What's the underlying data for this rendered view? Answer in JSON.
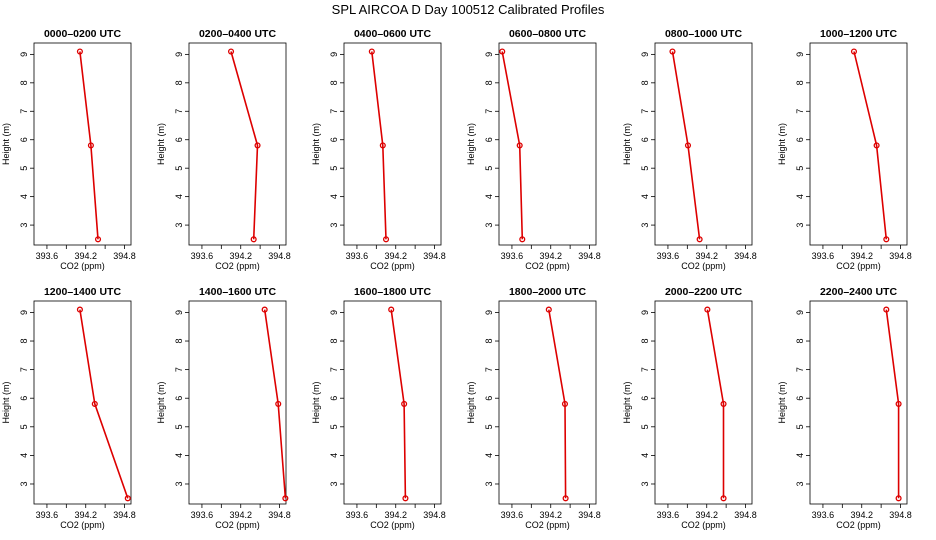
{
  "figure_title": "SPL AIRCOA D  Day 100512  Calibrated Profiles",
  "colors": {
    "series": "#dd0000",
    "axis": "#000000"
  },
  "chart_data": [
    {
      "type": "line",
      "title": "0000–0200 UTC",
      "xlabel": "CO2 (ppm)",
      "ylabel": "Height (m)",
      "xlim": [
        393.4,
        394.9
      ],
      "ylim": [
        2.3,
        9.4
      ],
      "xticks": [
        "393.6",
        "394.2",
        "394.8"
      ],
      "xtick_values": [
        393.6,
        394.2,
        394.8
      ],
      "yticks": [
        "3",
        "4",
        "5",
        "6",
        "7",
        "8",
        "9"
      ],
      "ytick_values": [
        3,
        4,
        5,
        6,
        7,
        8,
        9
      ],
      "series": [
        {
          "x": [
            394.11,
            394.28,
            394.39
          ],
          "y": [
            9.1,
            5.8,
            2.5
          ]
        }
      ]
    },
    {
      "type": "line",
      "title": "0200–0400 UTC",
      "xlabel": "CO2 (ppm)",
      "ylabel": "Height (m)",
      "xlim": [
        393.4,
        394.9
      ],
      "ylim": [
        2.3,
        9.4
      ],
      "xticks": [
        "393.6",
        "394.2",
        "394.8"
      ],
      "xtick_values": [
        393.6,
        394.2,
        394.8
      ],
      "yticks": [
        "3",
        "4",
        "5",
        "6",
        "7",
        "8",
        "9"
      ],
      "ytick_values": [
        3,
        4,
        5,
        6,
        7,
        8,
        9
      ],
      "series": [
        {
          "x": [
            394.05,
            394.46,
            394.4
          ],
          "y": [
            9.1,
            5.8,
            2.5
          ]
        }
      ]
    },
    {
      "type": "line",
      "title": "0400–0600 UTC",
      "xlabel": "CO2 (ppm)",
      "ylabel": "Height (m)",
      "xlim": [
        393.4,
        394.9
      ],
      "ylim": [
        2.3,
        9.4
      ],
      "xticks": [
        "393.6",
        "394.2",
        "394.8"
      ],
      "xtick_values": [
        393.6,
        394.2,
        394.8
      ],
      "yticks": [
        "3",
        "4",
        "5",
        "6",
        "7",
        "8",
        "9"
      ],
      "ytick_values": [
        3,
        4,
        5,
        6,
        7,
        8,
        9
      ],
      "series": [
        {
          "x": [
            393.83,
            394.0,
            394.05
          ],
          "y": [
            9.1,
            5.8,
            2.5
          ]
        }
      ]
    },
    {
      "type": "line",
      "title": "0600–0800 UTC",
      "xlabel": "CO2 (ppm)",
      "ylabel": "Height (m)",
      "xlim": [
        393.4,
        394.9
      ],
      "ylim": [
        2.3,
        9.4
      ],
      "xticks": [
        "393.6",
        "394.2",
        "394.8"
      ],
      "xtick_values": [
        393.6,
        394.2,
        394.8
      ],
      "yticks": [
        "3",
        "4",
        "5",
        "6",
        "7",
        "8",
        "9"
      ],
      "ytick_values": [
        3,
        4,
        5,
        6,
        7,
        8,
        9
      ],
      "series": [
        {
          "x": [
            393.45,
            393.72,
            393.76
          ],
          "y": [
            9.1,
            5.8,
            2.5
          ]
        }
      ]
    },
    {
      "type": "line",
      "title": "0800–1000 UTC",
      "xlabel": "CO2 (ppm)",
      "ylabel": "Height (m)",
      "xlim": [
        393.4,
        394.9
      ],
      "ylim": [
        2.3,
        9.4
      ],
      "xticks": [
        "393.6",
        "394.2",
        "394.8"
      ],
      "xtick_values": [
        393.6,
        394.2,
        394.8
      ],
      "yticks": [
        "3",
        "4",
        "5",
        "6",
        "7",
        "8",
        "9"
      ],
      "ytick_values": [
        3,
        4,
        5,
        6,
        7,
        8,
        9
      ],
      "series": [
        {
          "x": [
            393.67,
            393.91,
            394.09
          ],
          "y": [
            9.1,
            5.8,
            2.5
          ]
        }
      ]
    },
    {
      "type": "line",
      "title": "1000–1200 UTC",
      "xlabel": "CO2 (ppm)",
      "ylabel": "Height (m)",
      "xlim": [
        393.4,
        394.9
      ],
      "ylim": [
        2.3,
        9.4
      ],
      "xticks": [
        "393.6",
        "394.2",
        "394.8"
      ],
      "xtick_values": [
        393.6,
        394.2,
        394.8
      ],
      "yticks": [
        "3",
        "4",
        "5",
        "6",
        "7",
        "8",
        "9"
      ],
      "ytick_values": [
        3,
        4,
        5,
        6,
        7,
        8,
        9
      ],
      "series": [
        {
          "x": [
            394.08,
            394.43,
            394.58
          ],
          "y": [
            9.1,
            5.8,
            2.5
          ]
        }
      ]
    },
    {
      "type": "line",
      "title": "1200–1400 UTC",
      "xlabel": "CO2 (ppm)",
      "ylabel": "Height (m)",
      "xlim": [
        393.4,
        394.9
      ],
      "ylim": [
        2.3,
        9.4
      ],
      "xticks": [
        "393.6",
        "394.2",
        "394.8"
      ],
      "xtick_values": [
        393.6,
        394.2,
        394.8
      ],
      "yticks": [
        "3",
        "4",
        "5",
        "6",
        "7",
        "8",
        "9"
      ],
      "ytick_values": [
        3,
        4,
        5,
        6,
        7,
        8,
        9
      ],
      "series": [
        {
          "x": [
            394.11,
            394.34,
            394.85
          ],
          "y": [
            9.1,
            5.8,
            2.5
          ]
        }
      ]
    },
    {
      "type": "line",
      "title": "1400–1600 UTC",
      "xlabel": "CO2 (ppm)",
      "ylabel": "Height (m)",
      "xlim": [
        393.4,
        394.9
      ],
      "ylim": [
        2.3,
        9.4
      ],
      "xticks": [
        "393.6",
        "394.2",
        "394.8"
      ],
      "xtick_values": [
        393.6,
        394.2,
        394.8
      ],
      "yticks": [
        "3",
        "4",
        "5",
        "6",
        "7",
        "8",
        "9"
      ],
      "ytick_values": [
        3,
        4,
        5,
        6,
        7,
        8,
        9
      ],
      "series": [
        {
          "x": [
            394.57,
            394.78,
            394.89
          ],
          "y": [
            9.1,
            5.8,
            2.5
          ]
        }
      ]
    },
    {
      "type": "line",
      "title": "1600–1800 UTC",
      "xlabel": "CO2 (ppm)",
      "ylabel": "Height (m)",
      "xlim": [
        393.4,
        394.9
      ],
      "ylim": [
        2.3,
        9.4
      ],
      "xticks": [
        "393.6",
        "394.2",
        "394.8"
      ],
      "xtick_values": [
        393.6,
        394.2,
        394.8
      ],
      "yticks": [
        "3",
        "4",
        "5",
        "6",
        "7",
        "8",
        "9"
      ],
      "ytick_values": [
        3,
        4,
        5,
        6,
        7,
        8,
        9
      ],
      "series": [
        {
          "x": [
            394.13,
            394.33,
            394.35
          ],
          "y": [
            9.1,
            5.8,
            2.5
          ]
        }
      ]
    },
    {
      "type": "line",
      "title": "1800–2000 UTC",
      "xlabel": "CO2 (ppm)",
      "ylabel": "Height (m)",
      "xlim": [
        393.4,
        394.9
      ],
      "ylim": [
        2.3,
        9.4
      ],
      "xticks": [
        "393.6",
        "394.2",
        "394.8"
      ],
      "xtick_values": [
        393.6,
        394.2,
        394.8
      ],
      "yticks": [
        "3",
        "4",
        "5",
        "6",
        "7",
        "8",
        "9"
      ],
      "ytick_values": [
        3,
        4,
        5,
        6,
        7,
        8,
        9
      ],
      "series": [
        {
          "x": [
            394.17,
            394.42,
            394.43
          ],
          "y": [
            9.1,
            5.8,
            2.5
          ]
        }
      ]
    },
    {
      "type": "line",
      "title": "2000–2200 UTC",
      "xlabel": "CO2 (ppm)",
      "ylabel": "Height (m)",
      "xlim": [
        393.4,
        394.9
      ],
      "ylim": [
        2.3,
        9.4
      ],
      "xticks": [
        "393.6",
        "394.2",
        "394.8"
      ],
      "xtick_values": [
        393.6,
        394.2,
        394.8
      ],
      "yticks": [
        "3",
        "4",
        "5",
        "6",
        "7",
        "8",
        "9"
      ],
      "ytick_values": [
        3,
        4,
        5,
        6,
        7,
        8,
        9
      ],
      "series": [
        {
          "x": [
            394.21,
            394.46,
            394.46
          ],
          "y": [
            9.1,
            5.8,
            2.5
          ]
        }
      ]
    },
    {
      "type": "line",
      "title": "2200–2400 UTC",
      "xlabel": "CO2 (ppm)",
      "ylabel": "Height (m)",
      "xlim": [
        393.4,
        394.9
      ],
      "ylim": [
        2.3,
        9.4
      ],
      "xticks": [
        "393.6",
        "394.2",
        "394.8"
      ],
      "xtick_values": [
        393.6,
        394.2,
        394.8
      ],
      "yticks": [
        "3",
        "4",
        "5",
        "6",
        "7",
        "8",
        "9"
      ],
      "ytick_values": [
        3,
        4,
        5,
        6,
        7,
        8,
        9
      ],
      "series": [
        {
          "x": [
            394.58,
            394.77,
            394.77
          ],
          "y": [
            9.1,
            5.8,
            2.5
          ]
        }
      ]
    }
  ]
}
